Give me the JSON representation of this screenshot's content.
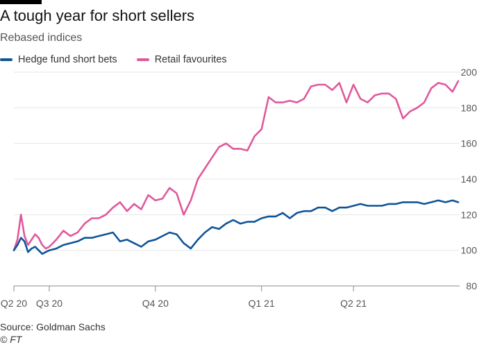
{
  "title": "A tough year for short sellers",
  "subtitle": "Rebased indices",
  "source": "Source: Goldman Sachs",
  "credit": "© FT",
  "colors": {
    "short_bets": "#0f5499",
    "retail": "#e0589b",
    "grid": "#e6e6e6",
    "axis": "#555555",
    "brand": "#000000"
  },
  "chart_data": {
    "type": "line",
    "title": "A tough year for short sellers",
    "subtitle": "Rebased indices",
    "xlabel": "",
    "ylabel": "",
    "ylim": [
      80,
      200
    ],
    "xlim": [
      0,
      63
    ],
    "x_unit": "weeks since start of Q2 2020",
    "y_ticks": [
      80,
      100,
      120,
      140,
      160,
      180,
      200
    ],
    "x_ticks": [
      {
        "label": "Q2 20",
        "x": 0
      },
      {
        "label": "Q3 20",
        "x": 5
      },
      {
        "label": "Q4 20",
        "x": 20
      },
      {
        "label": "Q1 21",
        "x": 35
      },
      {
        "label": "Q2 21",
        "x": 48
      }
    ],
    "grid": true,
    "series": [
      {
        "name": "Hedge fund short bets",
        "color": "#0f5499",
        "x": [
          0,
          0.5,
          1,
          1.5,
          2,
          2.5,
          3,
          3.5,
          4,
          4.5,
          5,
          6,
          7,
          8,
          9,
          10,
          11,
          12,
          13,
          14,
          15,
          16,
          17,
          18,
          19,
          20,
          21,
          22,
          23,
          24,
          25,
          26,
          27,
          28,
          29,
          30,
          31,
          32,
          33,
          34,
          35,
          36,
          37,
          38,
          39,
          40,
          41,
          42,
          43,
          44,
          45,
          46,
          47,
          48,
          49,
          50,
          51,
          52,
          53,
          54,
          55,
          56,
          57,
          58,
          59,
          60,
          61,
          62,
          62.8
        ],
        "values": [
          100,
          103,
          107,
          105,
          99,
          101,
          102,
          100,
          98,
          99,
          100,
          101,
          103,
          104,
          105,
          107,
          107,
          108,
          109,
          110,
          105,
          106,
          104,
          102,
          105,
          106,
          108,
          110,
          109,
          104,
          101,
          106,
          110,
          113,
          112,
          115,
          117,
          115,
          116,
          116,
          118,
          119,
          119,
          121,
          118,
          121,
          122,
          122,
          124,
          124,
          122,
          124,
          124,
          125,
          126,
          125,
          125,
          125,
          126,
          126,
          127,
          127,
          127,
          126,
          127,
          128,
          127,
          128,
          127
        ]
      },
      {
        "name": "Retail favourites",
        "color": "#e0589b",
        "x": [
          0,
          0.5,
          1,
          1.5,
          2,
          2.5,
          3,
          3.5,
          4,
          4.5,
          5,
          6,
          7,
          8,
          9,
          10,
          11,
          12,
          13,
          14,
          15,
          16,
          17,
          18,
          19,
          20,
          21,
          22,
          23,
          24,
          25,
          26,
          27,
          28,
          29,
          30,
          31,
          32,
          33,
          34,
          35,
          36,
          37,
          38,
          39,
          40,
          41,
          42,
          43,
          44,
          45,
          46,
          47,
          48,
          49,
          50,
          51,
          52,
          53,
          54,
          55,
          56,
          57,
          58,
          59,
          60,
          61,
          62,
          62.8
        ],
        "values": [
          100,
          106,
          120,
          108,
          103,
          106,
          109,
          107,
          103,
          101,
          102,
          106,
          111,
          108,
          110,
          115,
          118,
          118,
          120,
          124,
          127,
          122,
          126,
          123,
          131,
          128,
          129,
          135,
          132,
          120,
          128,
          140,
          146,
          152,
          158,
          160,
          157,
          157,
          156,
          164,
          168,
          186,
          183,
          183,
          184,
          183,
          185,
          192,
          193,
          193,
          190,
          194,
          183,
          193,
          185,
          183,
          187,
          188,
          188,
          185,
          174,
          178,
          180,
          183,
          191,
          194,
          193,
          189,
          195
        ]
      }
    ]
  }
}
